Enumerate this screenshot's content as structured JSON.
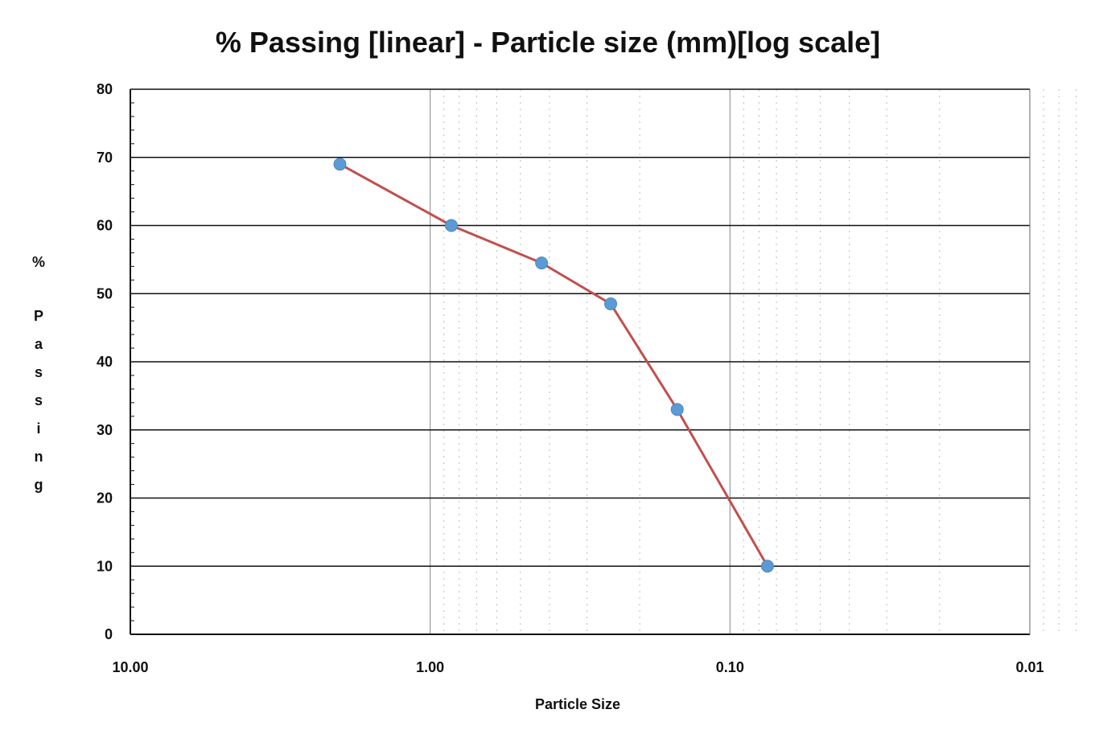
{
  "chart_data": {
    "type": "line",
    "title": "% Passing [linear] - Particle size (mm)[log scale]",
    "xlabel": "Particle Size",
    "ylabel": "% Passing",
    "x_scale": "log",
    "x_reversed": true,
    "xlim": [
      10.0,
      0.01
    ],
    "ylim": [
      0,
      80
    ],
    "x_tick_labels": [
      "10.00",
      "1.00",
      "0.10",
      "0.01"
    ],
    "x_ticks": [
      10.0,
      1.0,
      0.1,
      0.01
    ],
    "y_ticks": [
      0,
      10,
      20,
      30,
      40,
      50,
      60,
      70,
      80
    ],
    "grid": true,
    "series": [
      {
        "x": [
          2.0,
          0.85,
          0.425,
          0.25,
          0.15,
          0.075
        ],
        "y": [
          69,
          60,
          54.5,
          48.5,
          33,
          10
        ],
        "color": "#c0504d",
        "marker_color": "#5b9bd5"
      }
    ]
  }
}
